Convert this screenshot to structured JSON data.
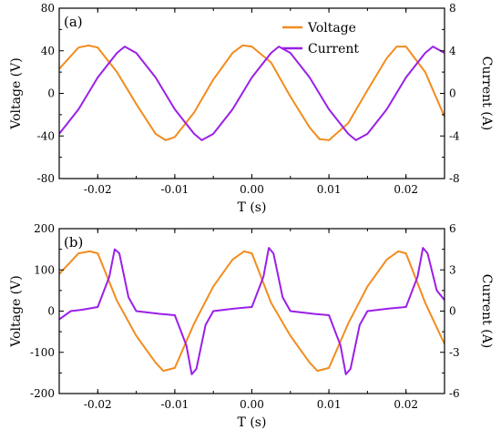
{
  "chart_data": [
    {
      "type": "line",
      "panel_label": "(a)",
      "xlabel": "T (s)",
      "ylabel": "Voltage (V)",
      "y2label": "Current (A)",
      "xlim": [
        -0.025,
        0.025
      ],
      "ylim": [
        -80,
        80
      ],
      "y2lim": [
        -8,
        8
      ],
      "xticks": [
        -0.02,
        -0.01,
        0.0,
        0.01,
        0.02
      ],
      "xtick_labels": [
        "-0.02",
        "-0.01",
        "0.00",
        "0.01",
        "0.02"
      ],
      "yticks": [
        -80,
        -40,
        0,
        40,
        80
      ],
      "ytick_labels": [
        "-80",
        "-40",
        "0",
        "40",
        "80"
      ],
      "y2ticks": [
        -8,
        -4,
        0,
        4,
        8
      ],
      "y2tick_labels": [
        "-8",
        "-4",
        "0",
        "4",
        "8"
      ],
      "legend": {
        "placement": "top-right",
        "entries": [
          "Voltage",
          "Current"
        ]
      },
      "grid": false,
      "series": [
        {
          "name": "Voltage",
          "axis": "left",
          "color": "#F28C1E",
          "x": [
            -0.025,
            -0.0225,
            -0.0212,
            -0.02,
            -0.0175,
            -0.015,
            -0.0125,
            -0.0112,
            -0.01,
            -0.0075,
            -0.005,
            -0.0025,
            -0.0012,
            0.0,
            0.0025,
            0.005,
            0.0075,
            0.0088,
            0.01,
            0.0125,
            0.015,
            0.0175,
            0.0188,
            0.02,
            0.0225,
            0.025
          ],
          "y": [
            23,
            43,
            45,
            43,
            20,
            -10,
            -38,
            -44,
            -41,
            -18,
            13,
            38,
            45,
            44,
            29,
            -3,
            -32,
            -43,
            -44,
            -28,
            3,
            33,
            44,
            44,
            20,
            -22
          ]
        },
        {
          "name": "Current",
          "axis": "right",
          "color": "#9B1FE8",
          "x": [
            -0.025,
            -0.0225,
            -0.02,
            -0.0175,
            -0.0165,
            -0.015,
            -0.0125,
            -0.01,
            -0.0075,
            -0.0065,
            -0.005,
            -0.0025,
            0.0,
            0.0025,
            0.0035,
            0.005,
            0.0075,
            0.01,
            0.0125,
            0.0135,
            0.015,
            0.0175,
            0.02,
            0.0225,
            0.0235,
            0.025
          ],
          "y": [
            -3.8,
            -1.5,
            1.5,
            3.8,
            4.4,
            3.8,
            1.5,
            -1.5,
            -3.8,
            -4.4,
            -3.8,
            -1.5,
            1.5,
            3.8,
            4.4,
            3.8,
            1.5,
            -1.5,
            -3.8,
            -4.4,
            -3.8,
            -1.5,
            1.5,
            3.8,
            4.4,
            3.8
          ]
        }
      ]
    },
    {
      "type": "line",
      "panel_label": "(b)",
      "xlabel": "T (s)",
      "ylabel": "Voltage (V)",
      "y2label": "Current (A)",
      "xlim": [
        -0.025,
        0.025
      ],
      "ylim": [
        -200,
        200
      ],
      "y2lim": [
        -6,
        6
      ],
      "xticks": [
        -0.02,
        -0.01,
        0.0,
        0.01,
        0.02
      ],
      "xtick_labels": [
        "-0.02",
        "-0.01",
        "0.00",
        "0.01",
        "0.02"
      ],
      "yticks": [
        -200,
        -100,
        0,
        100,
        200
      ],
      "ytick_labels": [
        "-200",
        "-100",
        "0",
        "100",
        "200"
      ],
      "y2ticks": [
        -6,
        -3,
        0,
        3,
        6
      ],
      "y2tick_labels": [
        "-6",
        "-3",
        "0",
        "3",
        "6"
      ],
      "grid": false,
      "series": [
        {
          "name": "Voltage",
          "axis": "left",
          "color": "#F28C1E",
          "x": [
            -0.025,
            -0.0225,
            -0.021,
            -0.02,
            -0.0175,
            -0.015,
            -0.0125,
            -0.0115,
            -0.01,
            -0.0075,
            -0.005,
            -0.0025,
            -0.001,
            0.0,
            0.0025,
            0.005,
            0.0075,
            0.0085,
            0.01,
            0.0125,
            0.015,
            0.0175,
            0.019,
            0.02,
            0.0225,
            0.025
          ],
          "y": [
            90,
            140,
            145,
            140,
            25,
            -60,
            -125,
            -145,
            -138,
            -30,
            60,
            125,
            145,
            140,
            20,
            -60,
            -125,
            -145,
            -138,
            -30,
            60,
            125,
            145,
            140,
            20,
            -80
          ]
        },
        {
          "name": "Current",
          "axis": "right",
          "color": "#9B1FE8",
          "x": [
            -0.025,
            -0.0235,
            -0.022,
            -0.02,
            -0.0185,
            -0.0178,
            -0.0172,
            -0.016,
            -0.015,
            -0.0135,
            -0.012,
            -0.01,
            -0.0085,
            -0.0078,
            -0.0072,
            -0.006,
            -0.005,
            -0.0035,
            -0.002,
            0.0,
            0.0015,
            0.0022,
            0.0028,
            0.004,
            0.005,
            0.0065,
            0.008,
            0.01,
            0.0115,
            0.0122,
            0.0128,
            0.014,
            0.015,
            0.0165,
            0.018,
            0.02,
            0.0215,
            0.0222,
            0.0228,
            0.024,
            0.025
          ],
          "y": [
            -0.6,
            0.0,
            0.1,
            0.3,
            2.5,
            4.5,
            4.2,
            1.0,
            0.0,
            -0.1,
            -0.2,
            -0.3,
            -2.5,
            -4.6,
            -4.2,
            -1.0,
            0.0,
            0.1,
            0.2,
            0.3,
            2.5,
            4.6,
            4.2,
            1.0,
            0.0,
            -0.1,
            -0.2,
            -0.3,
            -2.5,
            -4.6,
            -4.2,
            -1.0,
            0.0,
            0.1,
            0.2,
            0.3,
            2.5,
            4.6,
            4.2,
            1.5,
            0.8
          ]
        }
      ]
    }
  ]
}
